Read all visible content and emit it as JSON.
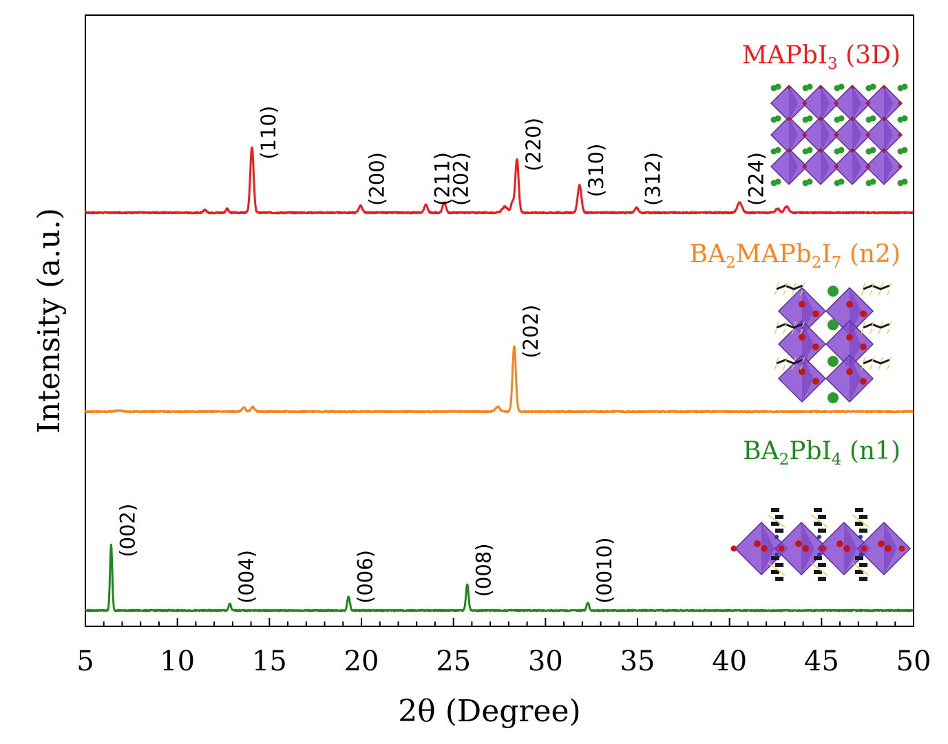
{
  "chart_data": {
    "type": "line",
    "xlabel": "2θ (Degree)",
    "ylabel": "Intensity (a.u.)",
    "xlim": [
      5,
      50
    ],
    "xticks": [
      5,
      10,
      15,
      20,
      25,
      30,
      35,
      40,
      45,
      50
    ],
    "y_ticks_shown": false,
    "grid": false,
    "series": [
      {
        "name": "MAPbI3 (3D)",
        "label_parts": [
          {
            "text": "MAPbI",
            "sub": false
          },
          {
            "text": "3",
            "sub": true
          },
          {
            "text": " (3D)",
            "sub": false
          }
        ],
        "color": "#ee1c1c",
        "baseline": 2.0,
        "peaks": [
          {
            "x": 11.5,
            "h": 0.015,
            "w": 0.07
          },
          {
            "x": 12.7,
            "h": 0.02,
            "w": 0.07
          },
          {
            "x": 14.05,
            "h": 0.33,
            "w": 0.09
          },
          {
            "x": 19.95,
            "h": 0.035,
            "w": 0.1
          },
          {
            "x": 23.5,
            "h": 0.04,
            "w": 0.09
          },
          {
            "x": 24.5,
            "h": 0.05,
            "w": 0.09
          },
          {
            "x": 27.8,
            "h": 0.03,
            "w": 0.15
          },
          {
            "x": 28.2,
            "h": 0.05,
            "w": 0.08
          },
          {
            "x": 28.45,
            "h": 0.27,
            "w": 0.09
          },
          {
            "x": 31.85,
            "h": 0.14,
            "w": 0.1
          },
          {
            "x": 34.95,
            "h": 0.025,
            "w": 0.09
          },
          {
            "x": 40.55,
            "h": 0.05,
            "w": 0.13
          },
          {
            "x": 42.6,
            "h": 0.02,
            "w": 0.1
          },
          {
            "x": 43.1,
            "h": 0.03,
            "w": 0.12
          }
        ],
        "annotations": [
          {
            "label": "(110)",
            "x": 14.05
          },
          {
            "label": "(200)",
            "x": 19.95
          },
          {
            "label": "(211)",
            "x": 23.5
          },
          {
            "label": "(202)",
            "x": 24.5
          },
          {
            "label": "(220)",
            "x": 28.45
          },
          {
            "label": "(310)",
            "x": 31.85
          },
          {
            "label": "(312)",
            "x": 34.95
          },
          {
            "label": "(224)",
            "x": 40.55
          }
        ]
      },
      {
        "name": "BA2MAPb2I7 (n2)",
        "label_parts": [
          {
            "text": "BA",
            "sub": false
          },
          {
            "text": "2",
            "sub": true
          },
          {
            "text": "MAPb",
            "sub": false
          },
          {
            "text": "2",
            "sub": true
          },
          {
            "text": "I",
            "sub": false
          },
          {
            "text": "7",
            "sub": true
          },
          {
            "text": " (n2)",
            "sub": false
          }
        ],
        "color": "#f7851f",
        "baseline": 1.0,
        "peaks": [
          {
            "x": 6.8,
            "h": 0.006,
            "w": 0.15
          },
          {
            "x": 13.6,
            "h": 0.02,
            "w": 0.1
          },
          {
            "x": 14.1,
            "h": 0.022,
            "w": 0.1
          },
          {
            "x": 27.4,
            "h": 0.025,
            "w": 0.12
          },
          {
            "x": 28.3,
            "h": 0.33,
            "w": 0.09
          }
        ],
        "annotations": [
          {
            "label": "(202)",
            "x": 28.3
          }
        ]
      },
      {
        "name": "BA2PbI4 (n1)",
        "label_parts": [
          {
            "text": "BA",
            "sub": false
          },
          {
            "text": "2",
            "sub": true
          },
          {
            "text": "PbI",
            "sub": false
          },
          {
            "text": "4",
            "sub": true
          },
          {
            "text": " (n1)",
            "sub": false
          }
        ],
        "color": "#1e8a1e",
        "baseline": 0.0,
        "peaks": [
          {
            "x": 6.4,
            "h": 0.33,
            "w": 0.06
          },
          {
            "x": 12.85,
            "h": 0.035,
            "w": 0.06
          },
          {
            "x": 19.3,
            "h": 0.07,
            "w": 0.07
          },
          {
            "x": 25.75,
            "h": 0.13,
            "w": 0.07
          },
          {
            "x": 32.3,
            "h": 0.04,
            "w": 0.07
          }
        ],
        "annotations": [
          {
            "label": "(002)",
            "x": 6.4
          },
          {
            "label": "(004)",
            "x": 12.85
          },
          {
            "label": "(006)",
            "x": 19.3
          },
          {
            "label": "(008)",
            "x": 25.75
          },
          {
            "label": "(0010)",
            "x": 32.3
          }
        ]
      }
    ]
  },
  "insets": [
    {
      "structure": "MAPbI3 3D perovskite network",
      "colors": {
        "octahedron": "#8a4fd0",
        "cation": "#2d9a2d",
        "halide": "#c01818"
      }
    },
    {
      "structure": "BA2MAPb2I7 layered perovskite",
      "colors": {
        "octahedron": "#8a4fd0",
        "cation": "#2d9a2d",
        "halide": "#c01818",
        "organic": "#1a1a1a"
      }
    },
    {
      "structure": "BA2PbI4 layered perovskite",
      "colors": {
        "octahedron": "#8a4fd0",
        "halide": "#c01818",
        "organic": "#1a1a1a",
        "nitrogen": "#2236b0"
      }
    }
  ]
}
